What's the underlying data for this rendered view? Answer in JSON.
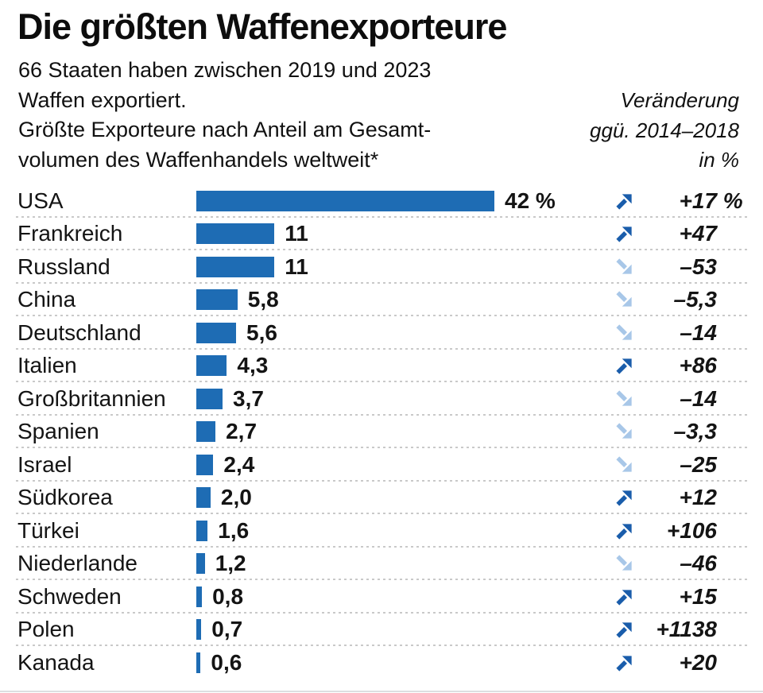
{
  "header": {
    "title": "Die größten Waffenexporteure",
    "subtitle_lines": [
      "66 Staaten haben zwischen 2019 und 2023",
      "Waffen exportiert.",
      "Größte Exporteure nach Anteil am Gesamt-",
      "volumen des Waffenhandels weltweit*"
    ],
    "change_note_lines": [
      "Veränderung",
      "ggü. 2014–2018",
      "in %"
    ]
  },
  "chart_data": {
    "type": "bar",
    "orientation": "horizontal",
    "title": "Die größten Waffenexporteure",
    "value_unit": "Anteil am Gesamtvolumen des Waffenhandels weltweit in %, 2019–2023",
    "change_unit": "Veränderung ggü. 2014–2018 in %",
    "xlim": [
      0,
      42
    ],
    "categories": [
      "USA",
      "Frankreich",
      "Russland",
      "China",
      "Deutschland",
      "Italien",
      "Großbritannien",
      "Spanien",
      "Israel",
      "Südkorea",
      "Türkei",
      "Niederlande",
      "Schweden",
      "Polen",
      "Kanada"
    ],
    "values": [
      42,
      11,
      11,
      5.8,
      5.6,
      4.3,
      3.7,
      2.7,
      2.4,
      2.0,
      1.6,
      1.2,
      0.8,
      0.7,
      0.6
    ],
    "changes": [
      17,
      47,
      -53,
      -5.3,
      -14,
      86,
      -14,
      -3.3,
      -25,
      12,
      106,
      -46,
      15,
      1138,
      20
    ],
    "rows": [
      {
        "country": "USA",
        "share": 42,
        "share_label": "42 %",
        "direction": "up",
        "change_label": "+17",
        "change_suffix": " %"
      },
      {
        "country": "Frankreich",
        "share": 11,
        "share_label": "11",
        "direction": "up",
        "change_label": "+47",
        "change_suffix": ""
      },
      {
        "country": "Russland",
        "share": 11,
        "share_label": "11",
        "direction": "down",
        "change_label": "–53",
        "change_suffix": ""
      },
      {
        "country": "China",
        "share": 5.8,
        "share_label": "5,8",
        "direction": "down",
        "change_label": "–5,3",
        "change_suffix": ""
      },
      {
        "country": "Deutschland",
        "share": 5.6,
        "share_label": "5,6",
        "direction": "down",
        "change_label": "–14",
        "change_suffix": ""
      },
      {
        "country": "Italien",
        "share": 4.3,
        "share_label": "4,3",
        "direction": "up",
        "change_label": "+86",
        "change_suffix": ""
      },
      {
        "country": "Großbritannien",
        "share": 3.7,
        "share_label": "3,7",
        "direction": "down",
        "change_label": "–14",
        "change_suffix": ""
      },
      {
        "country": "Spanien",
        "share": 2.7,
        "share_label": "2,7",
        "direction": "down",
        "change_label": "–3,3",
        "change_suffix": ""
      },
      {
        "country": "Israel",
        "share": 2.4,
        "share_label": "2,4",
        "direction": "down",
        "change_label": "–25",
        "change_suffix": ""
      },
      {
        "country": "Südkorea",
        "share": 2.0,
        "share_label": "2,0",
        "direction": "up",
        "change_label": "+12",
        "change_suffix": ""
      },
      {
        "country": "Türkei",
        "share": 1.6,
        "share_label": "1,6",
        "direction": "up",
        "change_label": "+106",
        "change_suffix": ""
      },
      {
        "country": "Niederlande",
        "share": 1.2,
        "share_label": "1,2",
        "direction": "down",
        "change_label": "–46",
        "change_suffix": ""
      },
      {
        "country": "Schweden",
        "share": 0.8,
        "share_label": "0,8",
        "direction": "up",
        "change_label": "+15",
        "change_suffix": ""
      },
      {
        "country": "Polen",
        "share": 0.7,
        "share_label": "0,7",
        "direction": "up",
        "change_label": "+1138",
        "change_suffix": ""
      },
      {
        "country": "Kanada",
        "share": 0.6,
        "share_label": "0,6",
        "direction": "up",
        "change_label": "+20",
        "change_suffix": ""
      }
    ],
    "colors": {
      "bar": "#1e6cb4",
      "arrow_up": "#1a5dab",
      "arrow_down": "#a8c7e8",
      "text": "#141414",
      "separator": "#c9c9c9"
    },
    "legend_position": "none",
    "grid": "dotted row separators"
  }
}
